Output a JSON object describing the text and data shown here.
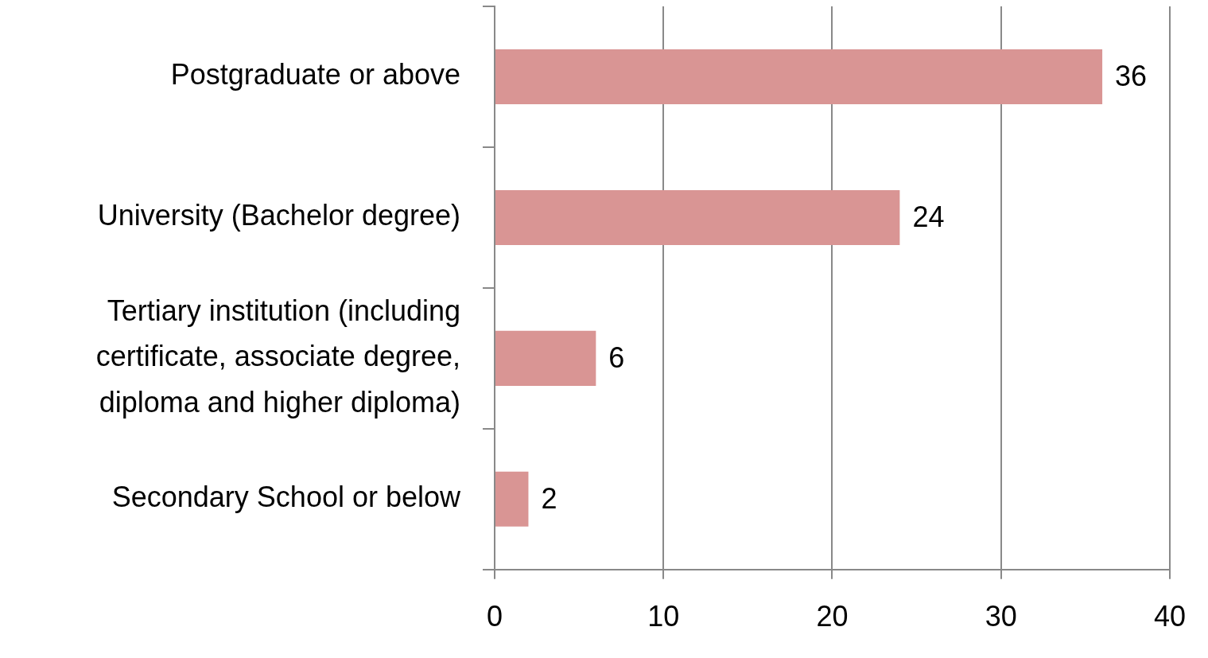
{
  "chart_data": {
    "type": "bar",
    "orientation": "horizontal",
    "categories": [
      "Postgraduate or above",
      "University (Bachelor degree)",
      "Tertiary institution (including certificate, associate degree, diploma and higher diploma)",
      "Secondary School or below"
    ],
    "values": [
      36,
      24,
      6,
      2
    ],
    "color": "#d99594",
    "xlim": [
      0,
      40
    ],
    "xticks": [
      0,
      10,
      20,
      30,
      40
    ],
    "grid": "x",
    "data_labels": true
  }
}
